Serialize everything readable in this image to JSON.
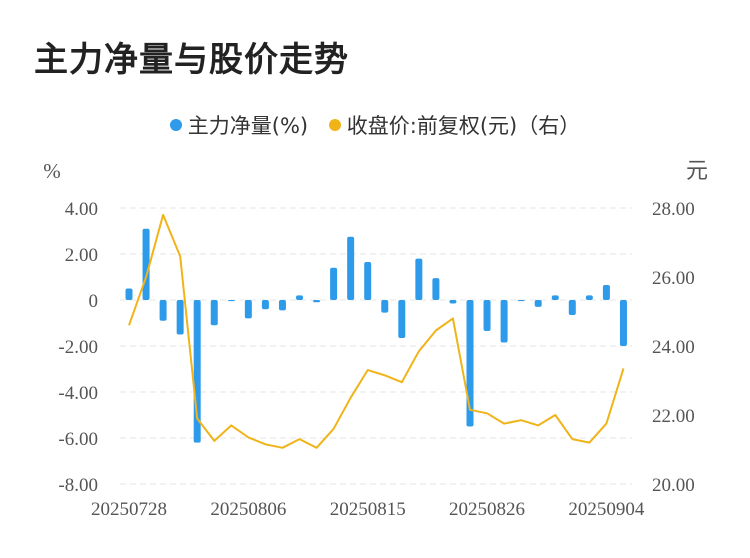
{
  "title": "主力净量与股价走势",
  "legend": {
    "series1_label": "主力净量(%)",
    "series2_label": "收盘价:前复权(元)（右）"
  },
  "colors": {
    "bar": "#2E9BEA",
    "line": "#F0B419",
    "grid": "#E6E6E6",
    "axis_text": "#555555"
  },
  "chart_data": {
    "type": "bar+line",
    "ylabel_left": "%",
    "ylabel_right": "元",
    "y_left_ticks": [
      "4.00",
      "2.00",
      "0",
      "-2.00",
      "-4.00",
      "-6.00",
      "-8.00"
    ],
    "y_right_ticks": [
      "28.00",
      "26.00",
      "24.00",
      "22.00",
      "20.00"
    ],
    "ylim_left": [
      -8,
      4
    ],
    "ylim_right": [
      20,
      28
    ],
    "x_tick_labels": [
      "20250728",
      "20250806",
      "20250815",
      "20250826",
      "20250904"
    ],
    "x_tick_indices": [
      0,
      7,
      14,
      21,
      28
    ],
    "n_points": 30,
    "series": [
      {
        "name": "主力净量(%)",
        "kind": "bar",
        "axis": "left",
        "values": [
          0.5,
          3.1,
          -0.9,
          -1.5,
          -6.2,
          -1.1,
          -0.05,
          -0.8,
          -0.4,
          -0.45,
          0.2,
          -0.1,
          1.4,
          2.75,
          1.65,
          -0.55,
          -1.65,
          1.8,
          0.95,
          -0.15,
          -5.5,
          -1.35,
          -1.85,
          -0.05,
          -0.3,
          0.2,
          -0.65,
          0.2,
          0.65,
          -2.0
        ]
      },
      {
        "name": "收盘价:前复权(元)（右）",
        "kind": "line",
        "axis": "right",
        "values": [
          24.6,
          26.0,
          27.8,
          26.6,
          21.9,
          21.25,
          21.7,
          21.35,
          21.15,
          21.05,
          21.3,
          21.05,
          21.6,
          22.5,
          23.3,
          23.15,
          22.95,
          23.85,
          24.45,
          24.8,
          22.15,
          22.05,
          21.75,
          21.85,
          21.7,
          22.0,
          21.3,
          21.2,
          21.75,
          23.35
        ]
      }
    ]
  }
}
